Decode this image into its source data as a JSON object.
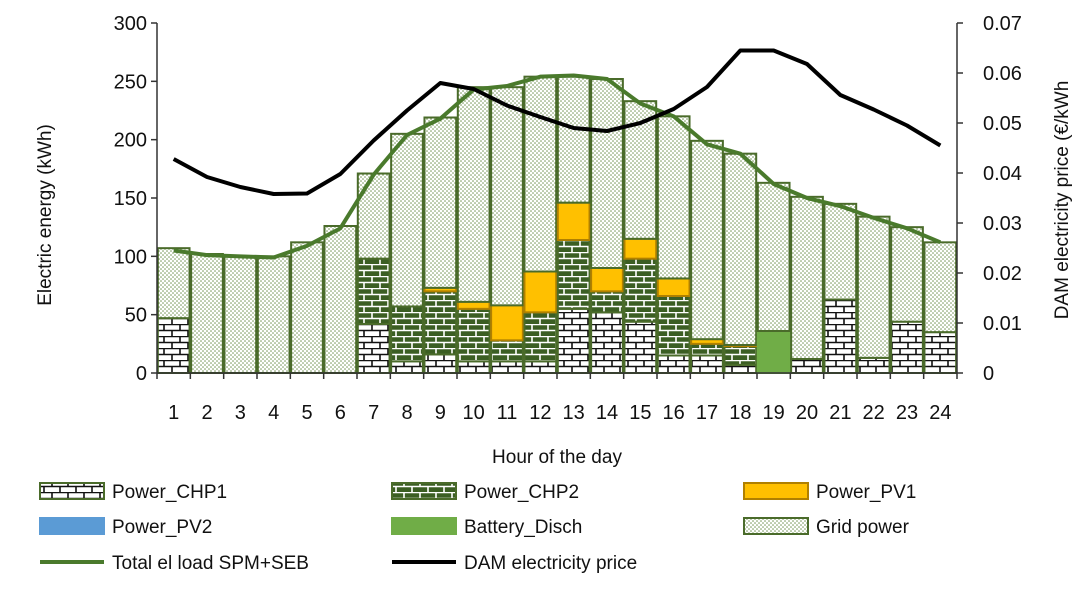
{
  "chart_data": {
    "type": "bar",
    "stacked": true,
    "categories": [
      "1",
      "2",
      "3",
      "4",
      "5",
      "6",
      "7",
      "8",
      "9",
      "10",
      "11",
      "12",
      "13",
      "14",
      "15",
      "16",
      "17",
      "18",
      "19",
      "20",
      "21",
      "22",
      "23",
      "24"
    ],
    "series": [
      {
        "name": "Power_CHP1",
        "values": [
          47,
          0,
          0,
          0,
          0,
          0,
          42,
          10,
          16,
          10,
          10,
          10,
          55,
          52,
          44,
          15,
          15,
          7,
          0,
          12,
          63,
          13,
          44,
          35
        ]
      },
      {
        "name": "Power_CHP2",
        "values": [
          0,
          0,
          0,
          0,
          0,
          0,
          56,
          47,
          54,
          45,
          18,
          42,
          59,
          18,
          54,
          51,
          10,
          16,
          0,
          0,
          0,
          0,
          0,
          0
        ]
      },
      {
        "name": "Power_PV1",
        "values": [
          0,
          0,
          0,
          0,
          0,
          0,
          0,
          0,
          3,
          6,
          30,
          35,
          32,
          20,
          17,
          15,
          4,
          1,
          0,
          0,
          0,
          0,
          0,
          0
        ]
      },
      {
        "name": "Power_PV2",
        "values": [
          0,
          0,
          0,
          0,
          0,
          0,
          0,
          0,
          0,
          0,
          0,
          0,
          0,
          0,
          0,
          0,
          0,
          0,
          0,
          0,
          0,
          0,
          0,
          0
        ]
      },
      {
        "name": "Battery_Disch",
        "values": [
          0,
          0,
          0,
          0,
          0,
          0,
          0,
          0,
          0,
          0,
          0,
          0,
          0,
          0,
          0,
          0,
          0,
          0,
          36,
          0,
          0,
          0,
          0,
          0
        ]
      },
      {
        "name": "Grid power",
        "values": [
          60,
          102,
          100,
          100,
          112,
          126,
          73,
          148,
          146,
          184,
          187,
          167,
          108,
          162,
          118,
          139,
          170,
          164,
          127,
          139,
          82,
          121,
          81,
          77
        ]
      }
    ],
    "lines": [
      {
        "name": "Total el load SPM+SEB",
        "axis": "left",
        "values": [
          105,
          101,
          100,
          99,
          109,
          124,
          170,
          204,
          218,
          243,
          246,
          254,
          255,
          252,
          231,
          220,
          196,
          188,
          162,
          150,
          143,
          133,
          124,
          112
        ]
      },
      {
        "name": "DAM electricity price",
        "axis": "right",
        "values": [
          0.0428,
          0.0392,
          0.0372,
          0.0358,
          0.0359,
          0.0398,
          0.0465,
          0.0525,
          0.058,
          0.0568,
          0.0535,
          0.0512,
          0.049,
          0.0484,
          0.05,
          0.0528,
          0.0572,
          0.0645,
          0.0645,
          0.0618,
          0.0556,
          0.0527,
          0.0495,
          0.0455
        ]
      }
    ],
    "xlabel": "Hour of the day",
    "ylabel": "Electric energy (kWh)",
    "y2label": "DAM electricity price (€/kWh",
    "ylim": [
      0,
      300
    ],
    "y2lim": [
      0,
      0.07
    ],
    "yticks": [
      "0",
      "50",
      "100",
      "150",
      "200",
      "250",
      "300"
    ],
    "y2ticks": [
      "0",
      "0.01",
      "0.02",
      "0.03",
      "0.04",
      "0.05",
      "0.06",
      "0.07"
    ],
    "legend_position": "bottom",
    "legend": [
      "Power_CHP1",
      "Power_CHP2",
      "Power_PV1",
      "Power_PV2",
      "Battery_Disch",
      "Grid power",
      "Total el load SPM+SEB",
      "DAM electricity price"
    ],
    "colors": {
      "chp1_fill": "#ffffff",
      "chp2_fill": "#3b5e23",
      "pv1_fill": "#ffc000",
      "pv2_fill": "#5b9bd5",
      "battery_fill": "#70ad47",
      "grid_fill": "#ffffff",
      "bar_border": "#4a6b2a",
      "total_line": "#4a7a2c",
      "price_line": "#000000"
    }
  }
}
